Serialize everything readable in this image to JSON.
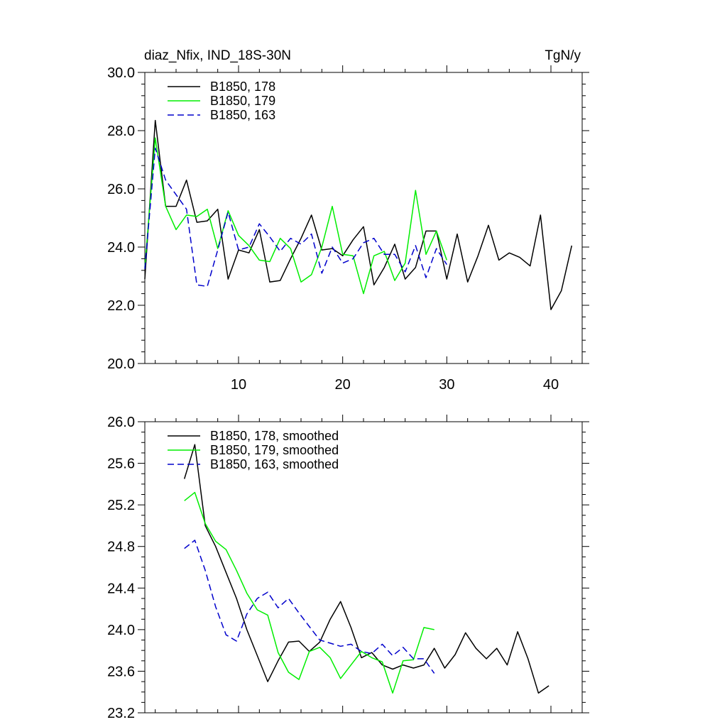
{
  "header": {
    "title": "diaz_Nfix, IND_18S-30N",
    "units": "TgN/y"
  },
  "colors": {
    "series_178": "#000000",
    "series_179": "#00ee00",
    "series_163": "#0000cc"
  },
  "chart_data": [
    {
      "type": "line",
      "title": "diaz_Nfix, IND_18S-30N",
      "units": "TgN/y",
      "xlim": [
        1,
        43
      ],
      "ylim": [
        20.0,
        30.0
      ],
      "x_tick_labels": [
        "10",
        "20",
        "30",
        "40"
      ],
      "y_tick_labels": [
        "20.0",
        "22.0",
        "24.0",
        "26.0",
        "28.0",
        "30.0"
      ],
      "legend_position": "top-left",
      "grid": false,
      "series": [
        {
          "name": "B1850, 178",
          "color": "#000000",
          "dash": "solid",
          "x_start": 1,
          "values": [
            22.9,
            28.35,
            25.4,
            25.4,
            26.3,
            24.85,
            24.9,
            25.3,
            22.9,
            23.9,
            23.8,
            24.6,
            22.8,
            22.85,
            23.6,
            24.3,
            25.1,
            23.9,
            23.95,
            23.7,
            24.25,
            24.7,
            22.7,
            23.3,
            24.1,
            22.9,
            23.3,
            24.55,
            24.55,
            22.9,
            24.45,
            22.8,
            23.7,
            24.75,
            23.55,
            23.8,
            23.65,
            23.35,
            25.1,
            21.85,
            22.5,
            24.05
          ]
        },
        {
          "name": "B1850, 179",
          "color": "#00ee00",
          "dash": "solid",
          "x_start": 1,
          "values": [
            23.3,
            27.75,
            25.4,
            24.6,
            25.1,
            25.05,
            25.3,
            23.95,
            25.25,
            24.4,
            24.05,
            23.55,
            23.5,
            24.3,
            23.95,
            22.8,
            23.05,
            24.0,
            25.4,
            23.75,
            23.7,
            22.4,
            23.7,
            23.85,
            22.85,
            23.45,
            25.95,
            23.75,
            24.55,
            23.55
          ]
        },
        {
          "name": "B1850, 163",
          "color": "#0000cc",
          "dash": "dashed",
          "x_start": 1,
          "values": [
            23.25,
            27.4,
            26.3,
            25.8,
            25.3,
            22.7,
            22.65,
            23.9,
            25.2,
            23.9,
            24.0,
            24.8,
            24.35,
            23.85,
            24.3,
            24.1,
            24.45,
            23.1,
            24.0,
            23.45,
            23.6,
            24.15,
            24.3,
            23.75,
            23.75,
            23.15,
            24.05,
            22.95,
            23.95,
            23.4
          ]
        }
      ]
    },
    {
      "type": "line",
      "xlim": [
        1,
        43
      ],
      "ylim": [
        23.2,
        26.0
      ],
      "x_tick_labels": [],
      "y_tick_labels": [
        "23.2",
        "23.6",
        "24.0",
        "24.4",
        "24.8",
        "25.2",
        "25.6",
        "26.0"
      ],
      "legend_position": "top-left",
      "grid": false,
      "series": [
        {
          "name": "B1850, 178, smoothed",
          "color": "#000000",
          "dash": "solid",
          "x_start": 4.8,
          "values": [
            25.45,
            25.78,
            25.0,
            24.8,
            24.55,
            24.3,
            24.0,
            23.75,
            23.5,
            23.7,
            23.88,
            23.89,
            23.79,
            23.88,
            24.1,
            24.27,
            24.02,
            23.73,
            23.78,
            23.66,
            23.62,
            23.66,
            23.63,
            23.66,
            23.82,
            23.63,
            23.76,
            23.97,
            23.82,
            23.72,
            23.82,
            23.66,
            23.98,
            23.72,
            23.39,
            23.46
          ]
        },
        {
          "name": "B1850, 179, smoothed",
          "color": "#00ee00",
          "dash": "solid",
          "x_start": 4.8,
          "values": [
            25.24,
            25.32,
            25.02,
            24.85,
            24.77,
            24.57,
            24.35,
            24.19,
            24.14,
            23.78,
            23.59,
            23.52,
            23.79,
            23.83,
            23.73,
            23.53,
            23.66,
            23.79,
            23.73,
            23.69,
            23.39,
            23.7,
            23.71,
            24.02,
            24.0
          ]
        },
        {
          "name": "B1850, 163, smoothed",
          "color": "#0000cc",
          "dash": "dashed",
          "x_start": 4.8,
          "values": [
            24.78,
            24.86,
            24.57,
            24.22,
            23.95,
            23.89,
            24.15,
            24.3,
            24.36,
            24.21,
            24.3,
            24.16,
            24.03,
            23.9,
            23.87,
            23.84,
            23.86,
            23.79,
            23.77,
            23.86,
            23.75,
            23.83,
            23.72,
            23.72,
            23.58
          ]
        }
      ]
    }
  ]
}
